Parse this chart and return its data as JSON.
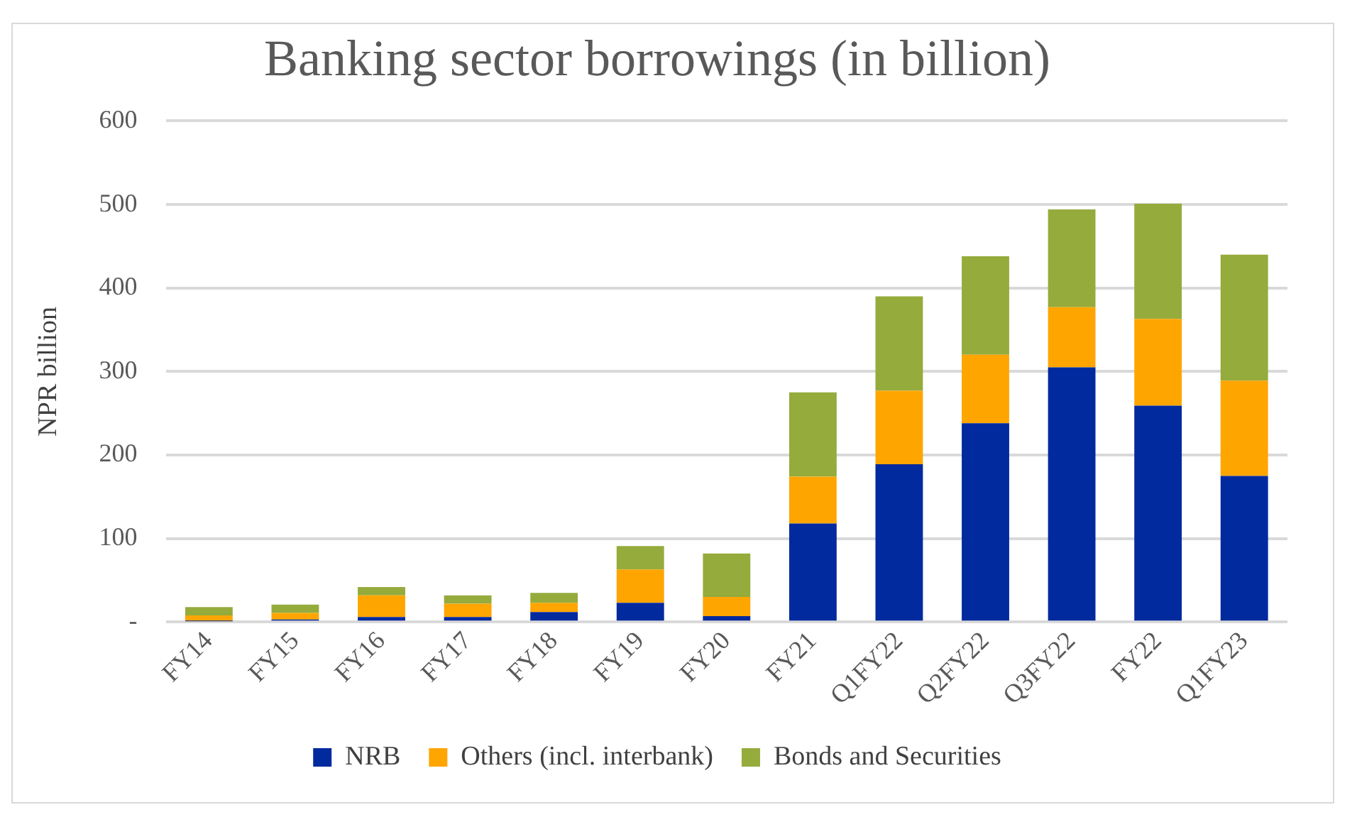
{
  "chart_data": {
    "type": "bar",
    "title": "Banking sector borrowings (in billion)",
    "ylabel": "NPR billion",
    "categories": [
      "FY14",
      "FY15",
      "FY16",
      "FY17",
      "FY18",
      "FY19",
      "FY20",
      "FY21",
      "Q1FY22",
      "Q2FY22",
      "Q3FY22",
      "FY22",
      "Q1FY23"
    ],
    "series": [
      {
        "name": "NRB",
        "color": "#002a9e",
        "values": [
          1,
          3,
          6,
          6,
          12,
          23,
          7,
          118,
          189,
          238,
          305,
          259,
          175
        ]
      },
      {
        "name": "Others (incl. interbank)",
        "color": "#ffa500",
        "values": [
          7,
          8,
          26,
          16,
          11,
          40,
          23,
          56,
          88,
          82,
          72,
          104,
          114
        ]
      },
      {
        "name": "Bonds and Securities",
        "color": "#95ab3c",
        "values": [
          10,
          10,
          10,
          10,
          12,
          28,
          52,
          101,
          113,
          118,
          117,
          138,
          151
        ]
      }
    ],
    "stacked": true,
    "ylim": [
      0,
      600
    ],
    "yticks": [
      {
        "value": 0,
        "label": "-"
      },
      100,
      200,
      300,
      400,
      500,
      600
    ],
    "grid": "y",
    "legend": "bottom"
  }
}
